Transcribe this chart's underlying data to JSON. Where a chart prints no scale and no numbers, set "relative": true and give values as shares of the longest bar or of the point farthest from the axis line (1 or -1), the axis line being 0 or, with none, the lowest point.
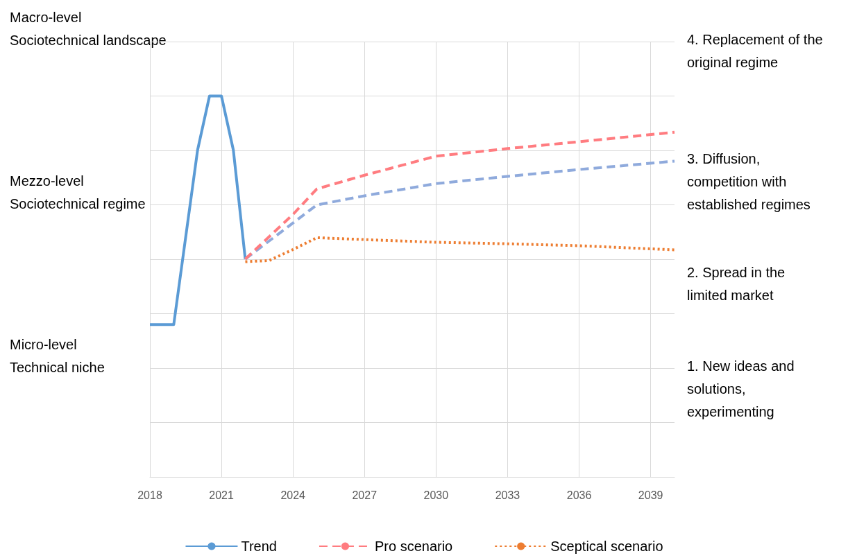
{
  "chart_data": {
    "type": "line",
    "relative": true,
    "x": [
      2018,
      2019,
      2020,
      2020.5,
      2021,
      2021.5,
      2022
    ],
    "xlim": [
      2018,
      2040
    ],
    "xticks": [
      2018,
      2021,
      2024,
      2027,
      2030,
      2033,
      2036,
      2039
    ],
    "grid": true,
    "legend": "bottom",
    "marker": "none",
    "series": [
      {
        "name": "Trend",
        "color": "#5b9bd5",
        "line_style": "solid",
        "values": [
          0.4,
          0.4,
          0.858,
          1,
          1,
          0.858,
          0.572
        ]
      },
      {
        "color": "#8faadc",
        "line_style": "dashed",
        "x": [
          2022,
          2025,
          2027,
          2030,
          2033,
          2036,
          2040
        ],
        "values": [
          0.572,
          0.714,
          0.738,
          0.77,
          0.789,
          0.807,
          0.829
        ]
      },
      {
        "name": "Pro scenario",
        "color": "#ff7c80",
        "line_style": "dashed",
        "x": [
          2022,
          2024,
          2025,
          2027,
          2030,
          2033,
          2036,
          2040
        ],
        "values": [
          0.572,
          0.689,
          0.756,
          0.792,
          0.842,
          0.862,
          0.88,
          0.905
        ]
      },
      {
        "name": "Sceptical scenario",
        "color": "#ed7d31",
        "line_style": "dotted",
        "x": [
          2022,
          2023,
          2024,
          2025,
          2027,
          2030,
          2033,
          2036,
          2040
        ],
        "values": [
          0.565,
          0.568,
          0.597,
          0.628,
          0.623,
          0.616,
          0.612,
          0.607,
          0.596
        ]
      }
    ],
    "annotations": [
      "Macro-level\nSociotechnical landscape",
      "Mezzo-level\nSociotechnical regime",
      "Micro-level\nTechnical niche",
      "4. Replacement of the\noriginal regime",
      "3. Diffusion,\ncompetition with\nestablished regimes",
      "2. Spread in the\nlimited market",
      "1. New ideas and\nsolutions,\nexperimenting"
    ]
  }
}
